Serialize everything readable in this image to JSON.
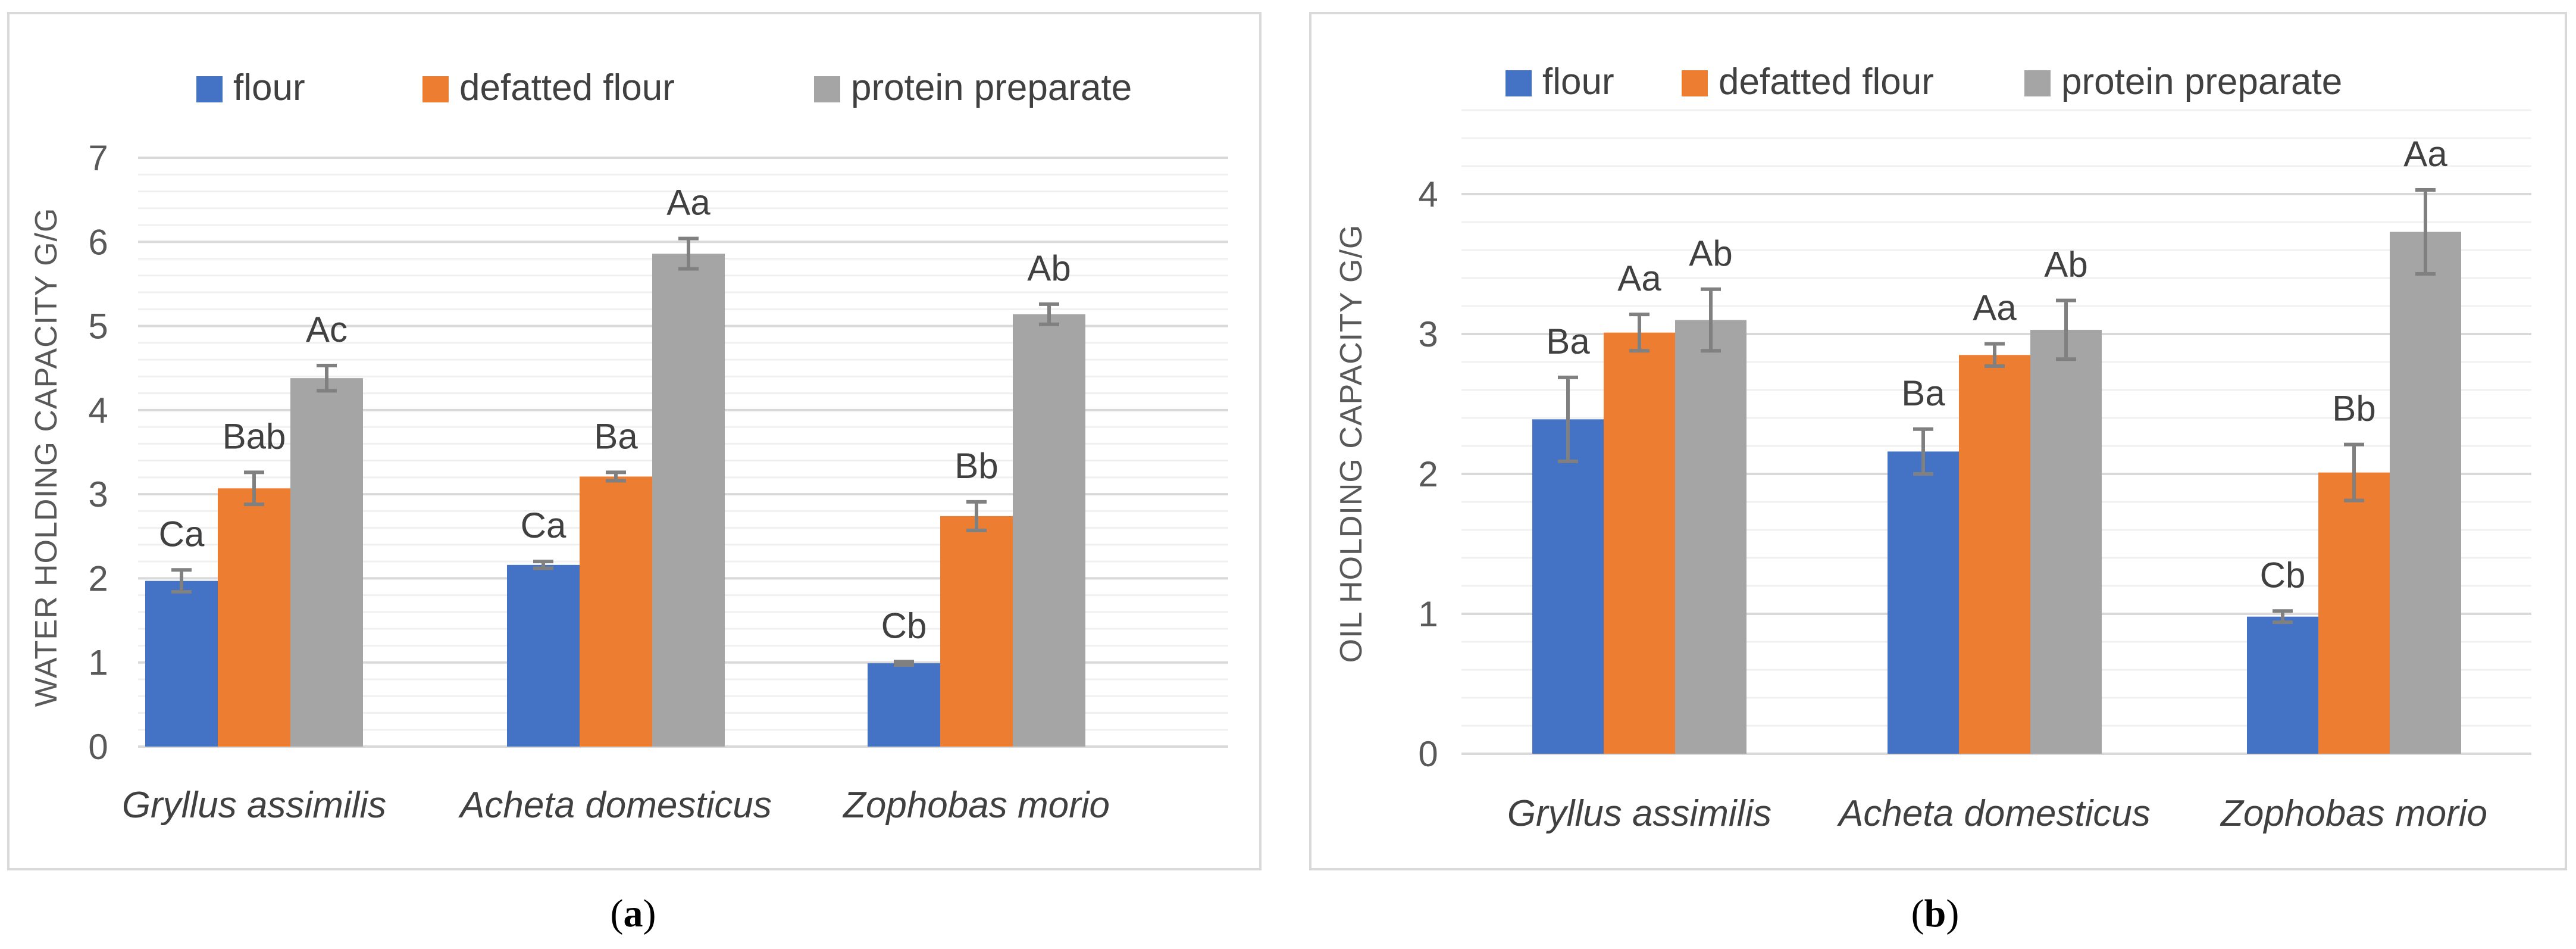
{
  "colors": {
    "flour": "#4472c4",
    "defatted_flour": "#ed7d31",
    "protein_preparate": "#a5a5a5"
  },
  "chart_data": [
    {
      "type": "bar",
      "panel": "(a)",
      "panel_letter": "a",
      "ylabel": "WATER HOLDING CAPACITY G/G",
      "xlabel": "",
      "ylim": [
        0,
        7
      ],
      "yticks": [
        "0",
        "1",
        "2",
        "3",
        "4",
        "5",
        "6",
        "7"
      ],
      "categories": [
        "Gryllus assimilis",
        "Acheta domesticus",
        "Zophobas morio"
      ],
      "series": [
        {
          "name": "flour",
          "values": [
            1.97,
            2.16,
            0.99
          ],
          "errors": [
            0.13,
            0.04,
            0.02
          ],
          "labels": [
            "Ca",
            "Ca",
            "Cb"
          ]
        },
        {
          "name": "defatted flour",
          "values": [
            3.07,
            3.21,
            2.74
          ],
          "errors": [
            0.19,
            0.05,
            0.17
          ],
          "labels": [
            "Bab",
            "Ba",
            "Bb"
          ]
        },
        {
          "name": "protein preparate",
          "values": [
            4.38,
            5.86,
            5.14
          ],
          "errors": [
            0.15,
            0.18,
            0.12
          ],
          "labels": [
            "Ac",
            "Aa",
            "Ab"
          ]
        }
      ]
    },
    {
      "type": "bar",
      "panel": "(b)",
      "panel_letter": "b",
      "ylabel": "OIL HOLDING CAPACITY G/G",
      "xlabel": "",
      "ylim": [
        0,
        4.5
      ],
      "yticks": [
        "0",
        "1",
        "2",
        "3",
        "4"
      ],
      "categories": [
        "Gryllus assimilis",
        "Acheta domesticus",
        "Zophobas morio"
      ],
      "series": [
        {
          "name": "flour",
          "values": [
            2.39,
            2.16,
            0.98
          ],
          "errors": [
            0.3,
            0.16,
            0.04
          ],
          "labels": [
            "Ba",
            "Ba",
            "Cb"
          ]
        },
        {
          "name": "defatted flour",
          "values": [
            3.01,
            2.85,
            2.01
          ],
          "errors": [
            0.13,
            0.08,
            0.2
          ],
          "labels": [
            "Aa",
            "Aa",
            "Bb"
          ]
        },
        {
          "name": "protein preparate",
          "values": [
            3.1,
            3.03,
            3.73
          ],
          "errors": [
            0.22,
            0.21,
            0.3
          ],
          "labels": [
            "Ab",
            "Ab",
            "Aa"
          ]
        }
      ]
    }
  ]
}
